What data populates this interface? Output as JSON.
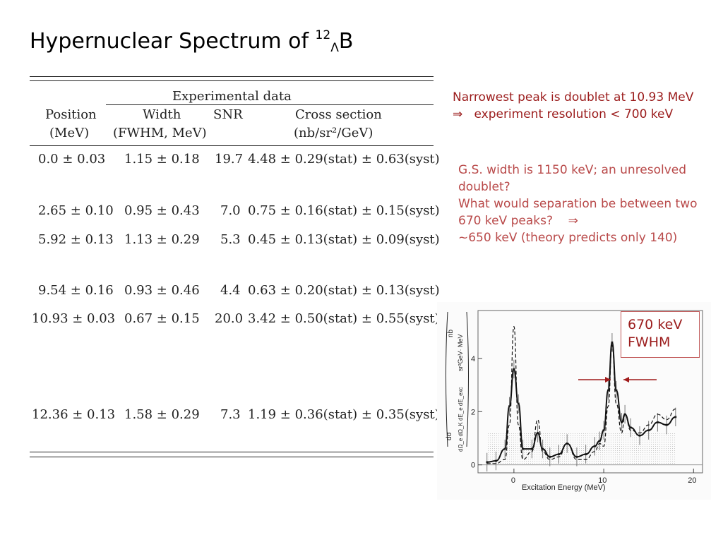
{
  "title": {
    "main": "Hypernuclear Spectrum of ",
    "sup": "12",
    "sub": "Λ",
    "tail": "B"
  },
  "table": {
    "group_header": "Experimental data",
    "headers": [
      {
        "line1": "Position",
        "line2": "(MeV)"
      },
      {
        "line1": "Width",
        "line2": "(FWHM, MeV)"
      },
      {
        "line1": "SNR",
        "line2": ""
      },
      {
        "line1": "Cross section",
        "line2": "(nb/sr²/GeV)"
      }
    ],
    "rows": [
      {
        "position": "0.0 ± 0.03",
        "width": "1.15 ± 0.18",
        "snr": "19.7",
        "cross": "4.48 ± 0.29(stat) ± 0.63(syst)"
      },
      {
        "position": "2.65 ± 0.10",
        "width": "0.95 ± 0.43",
        "snr": "7.0",
        "cross": "0.75 ± 0.16(stat) ± 0.15(syst)"
      },
      {
        "position": "5.92 ± 0.13",
        "width": "1.13 ± 0.29",
        "snr": "5.3",
        "cross": "0.45 ± 0.13(stat) ± 0.09(syst)"
      },
      {
        "position": "9.54 ± 0.16",
        "width": "0.93 ± 0.46",
        "snr": "4.4",
        "cross": "0.63 ± 0.20(stat) ± 0.13(syst)"
      },
      {
        "position": "10.93 ± 0.03",
        "width": "0.67 ± 0.15",
        "snr": "20.0",
        "cross": "3.42 ± 0.50(stat) ± 0.55(syst)"
      },
      {
        "position": "12.36 ± 0.13",
        "width": "1.58 ± 0.29",
        "snr": "7.3",
        "cross": "1.19 ± 0.36(stat) ± 0.35(syst)"
      }
    ]
  },
  "notes": {
    "block1_line1": "Narrowest peak is doublet at 10.93 MeV",
    "block1_arrow": "⇒",
    "block1_line2": "experiment resolution < 700 keV",
    "block2_line1": "G.S. width is 1150 keV; an unresolved doublet?",
    "block2_line2": "What would separation be between two 670 keV peaks?",
    "block2_arrow": "⇒",
    "block2_line3": "~650 keV (theory predicts only 140)"
  },
  "callout": {
    "line1": "670 keV",
    "line2": "FWHM"
  },
  "plot": {
    "xlabel": "Excitation Energy (MeV)",
    "ylabel_top": "nb",
    "ylabel_bottom": "sr²GeV· MeV",
    "ylabel_left": "dσ",
    "ylabel_left_bottom": "dΩ_e dΩ_K dE_e dE_exc",
    "x_ticks": [
      "0",
      "10",
      "20"
    ],
    "y_ticks": [
      "0",
      "2",
      "4"
    ]
  },
  "colors": {
    "accent": "#9b1c1c",
    "arrow": "#a01a1a"
  },
  "chart_data": {
    "type": "line",
    "xlabel": "Excitation Energy (MeV)",
    "ylabel": "nb / sr²GeV· MeV",
    "xlim": [
      -4,
      21
    ],
    "ylim": [
      -0.3,
      5.8
    ],
    "series": [
      {
        "x": [
          -3,
          -2,
          -1,
          -0.5,
          0,
          0.5,
          1,
          2,
          2.65,
          3.2,
          4,
          5,
          5.92,
          7,
          8,
          9,
          9.54,
          10,
          10.5,
          10.93,
          11.4,
          12,
          12.36,
          13,
          14,
          15,
          16,
          17,
          18
        ],
        "values": [
          0.1,
          0.15,
          0.6,
          2.2,
          3.6,
          2.3,
          0.6,
          0.6,
          1.2,
          0.6,
          0.3,
          0.4,
          0.8,
          0.3,
          0.4,
          0.7,
          0.9,
          1.3,
          2.8,
          4.6,
          2.8,
          1.6,
          1.9,
          1.4,
          1.1,
          1.3,
          1.6,
          1.5,
          1.8
        ]
      },
      {
        "x": [
          -3,
          -2,
          -1,
          -0.5,
          0,
          0.5,
          1,
          2,
          2.65,
          3.2,
          4,
          5,
          5.92,
          7,
          8,
          9,
          9.54,
          10,
          10.5,
          10.93,
          11.4,
          12,
          12.36,
          13,
          14,
          15,
          16,
          17,
          18
        ],
        "values": [
          0.05,
          0.05,
          0.2,
          1.5,
          5.2,
          1.5,
          0.2,
          0.5,
          1.7,
          0.5,
          0.2,
          0.3,
          0.8,
          0.2,
          0.2,
          0.5,
          0.8,
          0.7,
          2.2,
          4.5,
          2.3,
          1.2,
          1.9,
          1.3,
          1.2,
          1.5,
          1.9,
          1.7,
          2.1
        ]
      }
    ]
  }
}
